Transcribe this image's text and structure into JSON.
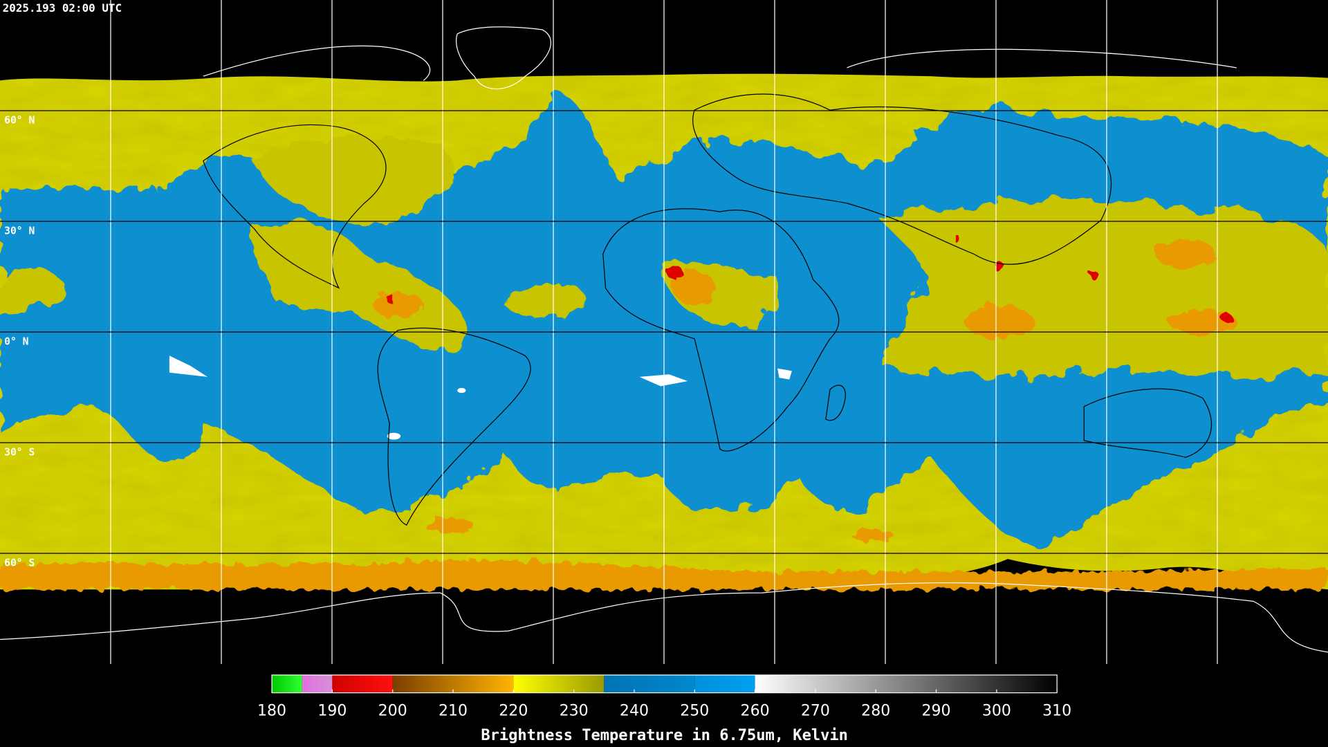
{
  "header": {
    "timestamp": "2025.193 02:00 UTC"
  },
  "map": {
    "lat_labels": [
      "60° N",
      "30° N",
      "0° N",
      "30° S",
      "60° S"
    ]
  },
  "colorbar": {
    "lim": [
      180,
      310
    ],
    "ticks": [
      180,
      190,
      200,
      210,
      220,
      230,
      240,
      250,
      260,
      270,
      280,
      290,
      300,
      310
    ],
    "label": "Brightness Temperature in 6.75um, Kelvin",
    "segments": [
      {
        "from": 180,
        "to": 185,
        "colors": [
          "#00c800",
          "#30ff30"
        ]
      },
      {
        "from": 185,
        "to": 190,
        "colors": [
          "#e070e0",
          "#d890d8"
        ]
      },
      {
        "from": 190,
        "to": 200,
        "colors": [
          "#d00000",
          "#ff1010"
        ]
      },
      {
        "from": 200,
        "to": 220,
        "colors": [
          "#7a3e00",
          "#ffb400"
        ]
      },
      {
        "from": 220,
        "to": 235,
        "colors": [
          "#ffff00",
          "#9a9a00"
        ]
      },
      {
        "from": 235,
        "to": 250,
        "colors": [
          "#0074b4",
          "#0088cc"
        ]
      },
      {
        "from": 250,
        "to": 260,
        "colors": [
          "#0090dc",
          "#00a0f0"
        ]
      },
      {
        "from": 260,
        "to": 310,
        "colors": [
          "#ffffff",
          "#000000"
        ]
      }
    ]
  }
}
